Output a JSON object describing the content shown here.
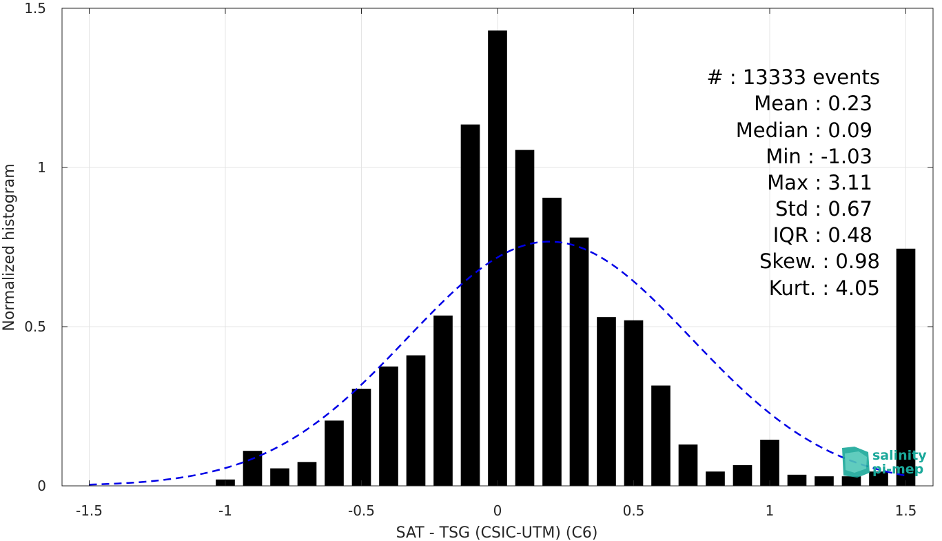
{
  "chart_data": {
    "type": "bar",
    "xlabel": "SAT - TSG (CSIC-UTM) (C6)",
    "ylabel": "Normalized histogram",
    "xlim": [
      -1.6,
      1.6
    ],
    "ylim": [
      0,
      1.5
    ],
    "xticks": [
      "-1.5",
      "-1",
      "-0.5",
      "0",
      "0.5",
      "1",
      "1.5"
    ],
    "yticks": [
      "0",
      "0.5",
      "1",
      "1.5"
    ],
    "grid": true,
    "bar_width": 0.07,
    "bars": [
      {
        "x": -1.0,
        "y": 0.02
      },
      {
        "x": -0.9,
        "y": 0.11
      },
      {
        "x": -0.8,
        "y": 0.055
      },
      {
        "x": -0.7,
        "y": 0.075
      },
      {
        "x": -0.6,
        "y": 0.205
      },
      {
        "x": -0.5,
        "y": 0.305
      },
      {
        "x": -0.4,
        "y": 0.375
      },
      {
        "x": -0.3,
        "y": 0.41
      },
      {
        "x": -0.2,
        "y": 0.535
      },
      {
        "x": -0.1,
        "y": 1.135
      },
      {
        "x": 0.0,
        "y": 1.43
      },
      {
        "x": 0.1,
        "y": 1.055
      },
      {
        "x": 0.2,
        "y": 0.905
      },
      {
        "x": 0.3,
        "y": 0.78
      },
      {
        "x": 0.4,
        "y": 0.53
      },
      {
        "x": 0.5,
        "y": 0.52
      },
      {
        "x": 0.6,
        "y": 0.315
      },
      {
        "x": 0.7,
        "y": 0.13
      },
      {
        "x": 0.8,
        "y": 0.045
      },
      {
        "x": 0.9,
        "y": 0.065
      },
      {
        "x": 1.0,
        "y": 0.145
      },
      {
        "x": 1.1,
        "y": 0.035
      },
      {
        "x": 1.2,
        "y": 0.03
      },
      {
        "x": 1.3,
        "y": 0.03
      },
      {
        "x": 1.4,
        "y": 0.045
      },
      {
        "x": 1.5,
        "y": 0.745
      }
    ],
    "fit_curve": {
      "type": "gaussian",
      "style": "dashed",
      "color": "#0000e6",
      "mean": 0.19,
      "std": 0.52,
      "x_range": [
        -1.5,
        1.5
      ]
    },
    "bar_color": "#000000",
    "stats": [
      "#  : 13333 events",
      "Mean : 0.23",
      "Median : 0.09",
      "Min : -1.03",
      "Max : 3.11",
      "Std : 0.67",
      "IQR : 0.48",
      "Skew. : 0.98",
      "Kurt. : 4.05"
    ]
  },
  "logo": {
    "line1": "salinity",
    "line2": "pi-mep",
    "color": "#1aa89a"
  }
}
